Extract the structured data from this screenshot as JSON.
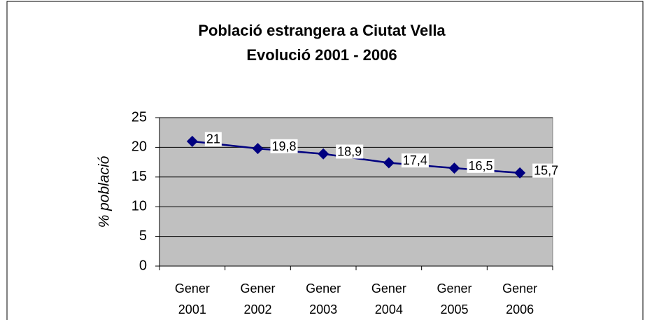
{
  "chart_data": {
    "type": "line",
    "title": "Població estrangera a Ciutat Vella",
    "subtitle": "Evolució 2001 - 2006",
    "y_label": "% població",
    "categories": [
      "Gener 2001",
      "Gener 2002",
      "Gener 2003",
      "Gener 2004",
      "Gener 2005",
      "Gener 2006"
    ],
    "values": [
      21,
      19.8,
      18.9,
      17.4,
      16.5,
      15.7
    ],
    "value_labels": [
      "21",
      "19,8",
      "18,9",
      "17,4",
      "16,5",
      "15,7"
    ],
    "color": "#000080",
    "plot_background": "#c0c0c0",
    "ylim": [
      0,
      25
    ],
    "yticks": [
      0,
      5,
      10,
      15,
      20,
      25
    ],
    "grid": true
  }
}
